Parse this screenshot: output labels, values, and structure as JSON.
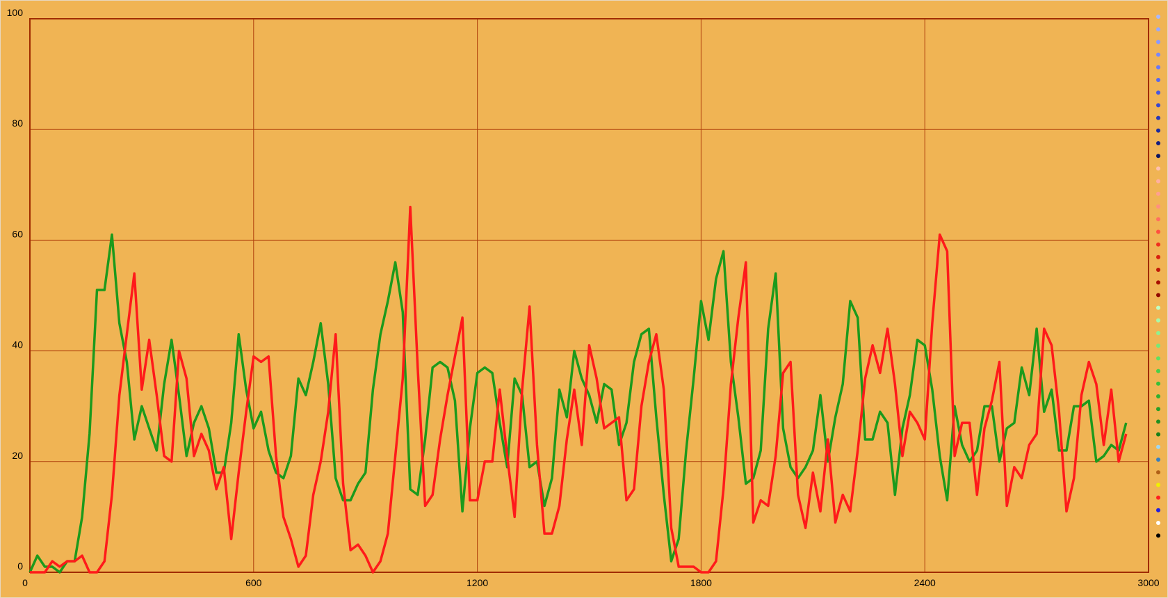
{
  "chart_data": {
    "type": "line",
    "x": [
      0,
      20,
      40,
      60,
      80,
      100,
      120,
      140,
      160,
      180,
      200,
      220,
      240,
      260,
      280,
      300,
      320,
      340,
      360,
      380,
      400,
      420,
      440,
      460,
      480,
      500,
      520,
      540,
      560,
      580,
      600,
      620,
      640,
      660,
      680,
      700,
      720,
      740,
      760,
      780,
      800,
      820,
      840,
      860,
      880,
      900,
      920,
      940,
      960,
      980,
      1000,
      1020,
      1040,
      1060,
      1080,
      1100,
      1120,
      1140,
      1160,
      1180,
      1200,
      1220,
      1240,
      1260,
      1280,
      1300,
      1320,
      1340,
      1360,
      1380,
      1400,
      1420,
      1440,
      1460,
      1480,
      1500,
      1520,
      1540,
      1560,
      1580,
      1600,
      1620,
      1640,
      1660,
      1680,
      1700,
      1720,
      1740,
      1760,
      1780,
      1800,
      1820,
      1840,
      1860,
      1880,
      1900,
      1920,
      1940,
      1960,
      1980,
      2000,
      2020,
      2040,
      2060,
      2080,
      2100,
      2120,
      2140,
      2160,
      2180,
      2200,
      2220,
      2240,
      2260,
      2280,
      2300,
      2320,
      2340,
      2360,
      2380,
      2400,
      2420,
      2440,
      2460,
      2480,
      2500,
      2520,
      2540,
      2560,
      2580,
      2600,
      2620,
      2640,
      2660,
      2680,
      2700,
      2720,
      2740,
      2760,
      2780,
      2800,
      2820,
      2840,
      2860,
      2880,
      2900,
      2920,
      2940
    ],
    "series": [
      {
        "color": "#1c9a1c",
        "values": [
          0,
          3,
          1,
          1,
          0,
          2,
          2,
          10,
          25,
          51,
          51,
          61,
          45,
          38,
          24,
          30,
          26,
          22,
          34,
          42,
          32,
          21,
          27,
          30,
          26,
          18,
          18,
          27,
          43,
          33,
          26,
          29,
          22,
          18,
          17,
          21,
          35,
          32,
          38,
          45,
          34,
          17,
          13,
          13,
          16,
          18,
          33,
          43,
          49,
          56,
          47,
          15,
          14,
          24,
          37,
          38,
          37,
          31,
          11,
          26,
          36,
          37,
          36,
          27,
          19,
          35,
          32,
          19,
          20,
          12,
          17,
          33,
          28,
          40,
          35,
          32,
          27,
          34,
          33,
          23,
          27,
          38,
          43,
          44,
          28,
          14,
          2,
          6,
          22,
          35,
          49,
          42,
          53,
          58,
          38,
          28,
          16,
          17,
          22,
          44,
          54,
          26,
          19,
          17,
          19,
          22,
          32,
          20,
          28,
          34,
          49,
          46,
          24,
          24,
          29,
          27,
          14,
          26,
          32,
          42,
          41,
          33,
          21,
          13,
          30,
          23,
          20,
          22,
          30,
          30,
          20,
          26,
          27,
          37,
          32,
          44,
          29,
          33,
          22,
          22,
          30,
          30,
          31,
          20,
          21,
          23,
          22,
          27
        ]
      },
      {
        "color": "#ff1a1a",
        "values": [
          0,
          0,
          0,
          2,
          1,
          2,
          2,
          3,
          0,
          0,
          2,
          14,
          32,
          43,
          54,
          33,
          42,
          32,
          21,
          20,
          40,
          35,
          21,
          25,
          22,
          15,
          19,
          6,
          18,
          29,
          39,
          38,
          39,
          21,
          10,
          6,
          1,
          3,
          14,
          20,
          29,
          43,
          16,
          4,
          5,
          3,
          0,
          2,
          7,
          21,
          35,
          66,
          37,
          12,
          14,
          24,
          32,
          39,
          46,
          13,
          13,
          20,
          20,
          33,
          21,
          10,
          33,
          48,
          23,
          7,
          7,
          12,
          24,
          33,
          23,
          41,
          35,
          26,
          27,
          28,
          13,
          15,
          30,
          38,
          43,
          33,
          8,
          1,
          1,
          1,
          0,
          0,
          2,
          15,
          34,
          46,
          56,
          9,
          13,
          12,
          21,
          36,
          38,
          14,
          8,
          18,
          11,
          24,
          9,
          14,
          11,
          22,
          35,
          41,
          36,
          44,
          34,
          21,
          29,
          27,
          24,
          45,
          61,
          58,
          21,
          27,
          27,
          14,
          26,
          31,
          38,
          12,
          19,
          17,
          23,
          25,
          44,
          41,
          29,
          11,
          17,
          32,
          38,
          34,
          23,
          33,
          20,
          25
        ]
      }
    ],
    "xlim": [
      0,
      3000
    ],
    "xticks": [
      0,
      600,
      1200,
      1800,
      2400,
      3000
    ],
    "ylim": [
      0,
      100
    ],
    "yticks": [
      0,
      20,
      40,
      60,
      80,
      100
    ],
    "grid": true
  }
}
